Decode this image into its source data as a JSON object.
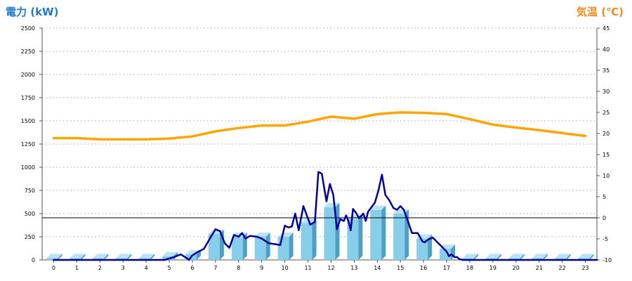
{
  "chart_data": {
    "type": "bar",
    "left_axis": {
      "label": "電力 (kW)",
      "min": 0,
      "max": 2500,
      "ticks": [
        0,
        250,
        500,
        750,
        1000,
        1250,
        1500,
        1750,
        2000,
        2250,
        2500
      ]
    },
    "right_axis": {
      "label": "気温 (℃)",
      "min": -10,
      "max": 45,
      "ticks": [
        -10,
        -5,
        0,
        5,
        10,
        15,
        20,
        25,
        30,
        35,
        40,
        45
      ]
    },
    "categories": [
      "0",
      "1",
      "2",
      "3",
      "4",
      "5",
      "6",
      "7",
      "8",
      "9",
      "10",
      "11",
      "12",
      "13",
      "14",
      "15",
      "16",
      "17",
      "18",
      "19",
      "20",
      "21",
      "22",
      "23"
    ],
    "grid": true,
    "reference_line": {
      "axis": "right",
      "value": 0
    },
    "series": [
      {
        "kind": "bar",
        "axis": "left",
        "color": "#87ceeb",
        "values": [
          20,
          20,
          20,
          20,
          20,
          40,
          60,
          280,
          250,
          250,
          250,
          400,
          570,
          440,
          540,
          500,
          230,
          120,
          20,
          20,
          20,
          20,
          20,
          20
        ]
      },
      {
        "kind": "line",
        "axis": "left",
        "color": "#000099",
        "points": [
          [
            0,
            0
          ],
          [
            4.8,
            0
          ],
          [
            5.2,
            30
          ],
          [
            5.5,
            60
          ],
          [
            5.75,
            20
          ],
          [
            5.85,
            0
          ],
          [
            6.0,
            50
          ],
          [
            6.2,
            80
          ],
          [
            6.5,
            120
          ],
          [
            6.8,
            250
          ],
          [
            7.0,
            330
          ],
          [
            7.2,
            310
          ],
          [
            7.4,
            180
          ],
          [
            7.6,
            130
          ],
          [
            7.8,
            270
          ],
          [
            8.0,
            250
          ],
          [
            8.15,
            290
          ],
          [
            8.3,
            230
          ],
          [
            8.5,
            260
          ],
          [
            8.8,
            250
          ],
          [
            9.0,
            230
          ],
          [
            9.3,
            180
          ],
          [
            9.6,
            170
          ],
          [
            9.8,
            160
          ],
          [
            10.0,
            370
          ],
          [
            10.15,
            350
          ],
          [
            10.3,
            360
          ],
          [
            10.45,
            500
          ],
          [
            10.6,
            320
          ],
          [
            10.8,
            580
          ],
          [
            10.95,
            480
          ],
          [
            11.1,
            380
          ],
          [
            11.3,
            410
          ],
          [
            11.45,
            950
          ],
          [
            11.6,
            930
          ],
          [
            11.8,
            630
          ],
          [
            11.95,
            820
          ],
          [
            12.1,
            700
          ],
          [
            12.25,
            330
          ],
          [
            12.4,
            440
          ],
          [
            12.55,
            420
          ],
          [
            12.65,
            480
          ],
          [
            12.75,
            420
          ],
          [
            12.85,
            320
          ],
          [
            12.95,
            550
          ],
          [
            13.1,
            500
          ],
          [
            13.2,
            450
          ],
          [
            13.4,
            500
          ],
          [
            13.5,
            420
          ],
          [
            13.6,
            520
          ],
          [
            13.75,
            570
          ],
          [
            13.9,
            620
          ],
          [
            14.05,
            750
          ],
          [
            14.2,
            920
          ],
          [
            14.35,
            700
          ],
          [
            14.5,
            650
          ],
          [
            14.7,
            560
          ],
          [
            14.85,
            540
          ],
          [
            15.0,
            580
          ],
          [
            15.15,
            540
          ],
          [
            15.35,
            400
          ],
          [
            15.5,
            290
          ],
          [
            15.75,
            290
          ],
          [
            15.95,
            200
          ],
          [
            16.05,
            190
          ],
          [
            16.2,
            220
          ],
          [
            16.4,
            240
          ],
          [
            16.6,
            190
          ],
          [
            16.8,
            140
          ],
          [
            17.0,
            90
          ],
          [
            17.1,
            40
          ],
          [
            17.2,
            60
          ],
          [
            17.35,
            30
          ],
          [
            17.45,
            30
          ],
          [
            17.55,
            10
          ],
          [
            17.7,
            0
          ],
          [
            23.5,
            0
          ]
        ]
      },
      {
        "kind": "line",
        "axis": "right",
        "color": "#ffa500",
        "points": [
          [
            0,
            18.9
          ],
          [
            1,
            18.9
          ],
          [
            2,
            18.6
          ],
          [
            3,
            18.6
          ],
          [
            4,
            18.6
          ],
          [
            5,
            18.8
          ],
          [
            6,
            19.3
          ],
          [
            7,
            20.5
          ],
          [
            8,
            21.3
          ],
          [
            9,
            21.9
          ],
          [
            10,
            21.9
          ],
          [
            11,
            22.8
          ],
          [
            12,
            24.0
          ],
          [
            13,
            23.5
          ],
          [
            14,
            24.6
          ],
          [
            15,
            25.0
          ],
          [
            16,
            24.9
          ],
          [
            17,
            24.6
          ],
          [
            18,
            23.4
          ],
          [
            19,
            22.1
          ],
          [
            20,
            21.4
          ],
          [
            21,
            20.8
          ],
          [
            22,
            20.1
          ],
          [
            23,
            19.4
          ]
        ]
      }
    ]
  }
}
